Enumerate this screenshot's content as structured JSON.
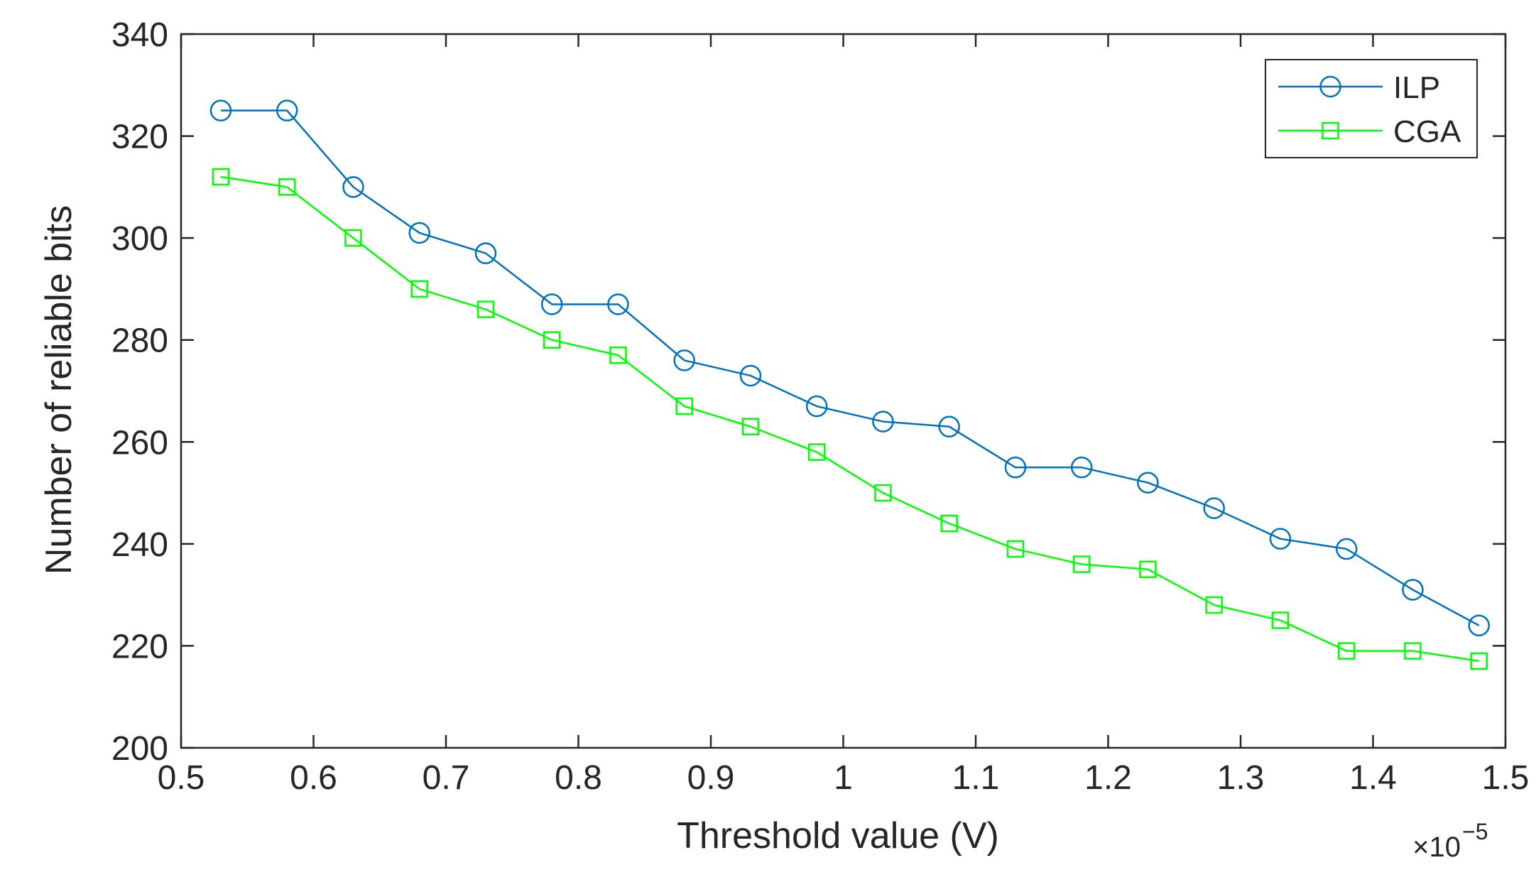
{
  "chart_data": {
    "type": "line",
    "title": "",
    "xlabel": "Threshold value (V)",
    "ylabel": "Number of reliable bits",
    "x_exponent_label": {
      "base": "×10",
      "exponent": "−5"
    },
    "xlim": [
      0.5,
      1.5
    ],
    "ylim": [
      200,
      340
    ],
    "x_ticks": [
      0.5,
      0.6,
      0.7,
      0.8,
      0.9,
      1,
      1.1,
      1.2,
      1.3,
      1.4,
      1.5
    ],
    "x_tick_labels": [
      "0.5",
      "0.6",
      "0.7",
      "0.8",
      "0.9",
      "1",
      "1.1",
      "1.2",
      "1.3",
      "1.4",
      "1.5"
    ],
    "y_ticks": [
      200,
      220,
      240,
      260,
      280,
      300,
      320,
      340
    ],
    "y_tick_labels": [
      "200",
      "220",
      "240",
      "260",
      "280",
      "300",
      "320",
      "340"
    ],
    "grid": false,
    "legend_position": "top-right",
    "x": [
      0.53,
      0.58,
      0.63,
      0.68,
      0.73,
      0.78,
      0.83,
      0.88,
      0.93,
      0.98,
      1.03,
      1.08,
      1.13,
      1.18,
      1.23,
      1.28,
      1.33,
      1.38,
      1.43,
      1.48
    ],
    "series": [
      {
        "name": "ILP",
        "color": "#0072BD",
        "marker": "circle",
        "values": [
          325,
          325,
          310,
          301,
          297,
          287,
          287,
          276,
          273,
          267,
          264,
          263,
          255,
          255,
          252,
          247,
          241,
          239,
          231,
          224
        ]
      },
      {
        "name": "CGA",
        "color": "#00FF00",
        "marker": "square",
        "values": [
          312,
          310,
          300,
          290,
          286,
          280,
          277,
          267,
          263,
          258,
          250,
          244,
          239,
          236,
          235,
          228,
          225,
          219,
          219,
          217
        ]
      }
    ],
    "colors": {
      "axis": "#262626",
      "background": "#ffffff"
    }
  }
}
